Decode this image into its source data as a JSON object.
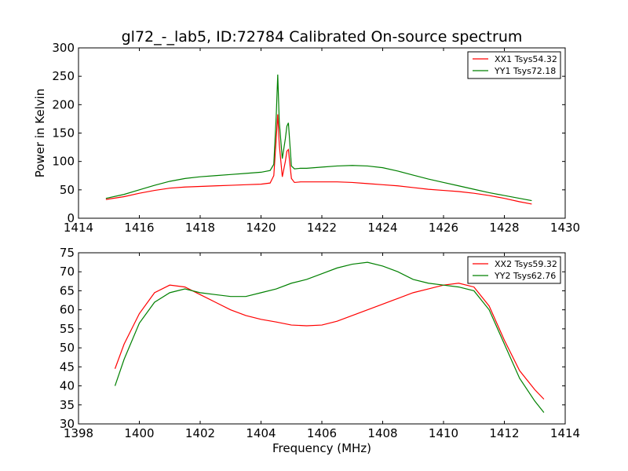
{
  "figure_title": "gl72_-_lab5, ID:72784 Calibrated On-source spectrum",
  "chart_data": [
    {
      "type": "line",
      "title": "gl72_-_lab5, ID:72784 Calibrated On-source spectrum",
      "xlabel": "",
      "ylabel": "Power in Kelvin",
      "xlim": [
        1414,
        1430
      ],
      "ylim": [
        0,
        300
      ],
      "xticks": [
        "1414",
        "1416",
        "1418",
        "1420",
        "1422",
        "1424",
        "1426",
        "1428",
        "1430"
      ],
      "yticks": [
        "0",
        "50",
        "100",
        "150",
        "200",
        "250",
        "300"
      ],
      "grid": false,
      "legend_position": "top-right",
      "series": [
        {
          "name": "XX1 Tsys54.32",
          "color": "#ff0000",
          "x": [
            1414.9,
            1415.5,
            1416.0,
            1416.5,
            1417.0,
            1417.5,
            1418.0,
            1418.5,
            1419.0,
            1419.5,
            1420.0,
            1420.3,
            1420.42,
            1420.5,
            1420.55,
            1420.6,
            1420.7,
            1420.8,
            1420.85,
            1420.9,
            1420.95,
            1421.0,
            1421.1,
            1421.3,
            1421.5,
            1422.0,
            1422.5,
            1423.0,
            1423.5,
            1424.0,
            1424.5,
            1425.0,
            1425.5,
            1426.0,
            1426.5,
            1427.0,
            1427.5,
            1428.0,
            1428.5,
            1428.9
          ],
          "y": [
            33,
            38,
            44,
            49,
            53,
            55,
            56,
            57,
            58,
            59,
            60,
            62,
            75,
            140,
            183,
            130,
            73,
            100,
            118,
            121,
            95,
            70,
            63,
            64,
            64,
            64,
            64,
            63,
            61,
            59,
            57,
            54,
            51,
            49,
            47,
            44,
            40,
            35,
            29,
            25
          ]
        },
        {
          "name": "YY1 Tsys72.18",
          "color": "#008000",
          "x": [
            1414.9,
            1415.5,
            1416.0,
            1416.5,
            1417.0,
            1417.5,
            1418.0,
            1418.5,
            1419.0,
            1419.5,
            1420.0,
            1420.3,
            1420.42,
            1420.5,
            1420.55,
            1420.6,
            1420.7,
            1420.8,
            1420.85,
            1420.9,
            1420.95,
            1421.0,
            1421.1,
            1421.3,
            1421.5,
            1422.0,
            1422.5,
            1423.0,
            1423.5,
            1424.0,
            1424.5,
            1425.0,
            1425.5,
            1426.0,
            1426.5,
            1427.0,
            1427.5,
            1428.0,
            1428.5,
            1428.9
          ],
          "y": [
            35,
            42,
            50,
            58,
            65,
            70,
            73,
            75,
            77,
            79,
            81,
            84,
            95,
            180,
            253,
            170,
            105,
            140,
            162,
            168,
            130,
            92,
            87,
            88,
            88,
            90,
            92,
            93,
            92,
            89,
            83,
            76,
            69,
            63,
            57,
            51,
            45,
            40,
            35,
            31
          ]
        }
      ]
    },
    {
      "type": "line",
      "title": "",
      "xlabel": "Frequency (MHz)",
      "ylabel": "",
      "xlim": [
        1398,
        1414
      ],
      "ylim": [
        30,
        75
      ],
      "xticks": [
        "1398",
        "1400",
        "1402",
        "1404",
        "1406",
        "1408",
        "1410",
        "1412",
        "1414"
      ],
      "yticks": [
        "30",
        "35",
        "40",
        "45",
        "50",
        "55",
        "60",
        "65",
        "70",
        "75"
      ],
      "grid": false,
      "legend_position": "top-right",
      "series": [
        {
          "name": "XX2 Tsys59.32",
          "color": "#ff0000",
          "x": [
            1399.2,
            1399.5,
            1400.0,
            1400.5,
            1401.0,
            1401.5,
            1402.0,
            1402.5,
            1403.0,
            1403.5,
            1404.0,
            1404.5,
            1405.0,
            1405.5,
            1406.0,
            1406.5,
            1407.0,
            1407.5,
            1408.0,
            1408.5,
            1409.0,
            1409.5,
            1410.0,
            1410.5,
            1411.0,
            1411.5,
            1412.0,
            1412.5,
            1413.0,
            1413.3
          ],
          "y": [
            44.5,
            51,
            59,
            64.5,
            66.5,
            66,
            64,
            62,
            60,
            58.5,
            57.5,
            56.8,
            56,
            55.8,
            56,
            57,
            58.5,
            60,
            61.5,
            63,
            64.5,
            65.5,
            66.5,
            67,
            66,
            61,
            52,
            44,
            39,
            36.5
          ]
        },
        {
          "name": "YY2 Tsys62.76",
          "color": "#008000",
          "x": [
            1399.2,
            1399.5,
            1400.0,
            1400.5,
            1401.0,
            1401.5,
            1402.0,
            1402.5,
            1403.0,
            1403.5,
            1404.0,
            1404.5,
            1405.0,
            1405.5,
            1406.0,
            1406.5,
            1407.0,
            1407.5,
            1408.0,
            1408.5,
            1409.0,
            1409.5,
            1410.0,
            1410.5,
            1411.0,
            1411.5,
            1412.0,
            1412.5,
            1413.0,
            1413.3
          ],
          "y": [
            40,
            47,
            56.5,
            62,
            64.5,
            65.5,
            64.5,
            64,
            63.5,
            63.5,
            64.5,
            65.5,
            67,
            68,
            69.5,
            71,
            72,
            72.5,
            71.5,
            70,
            68,
            67,
            66.5,
            66,
            65,
            60,
            51,
            42,
            36,
            33
          ]
        }
      ]
    }
  ]
}
